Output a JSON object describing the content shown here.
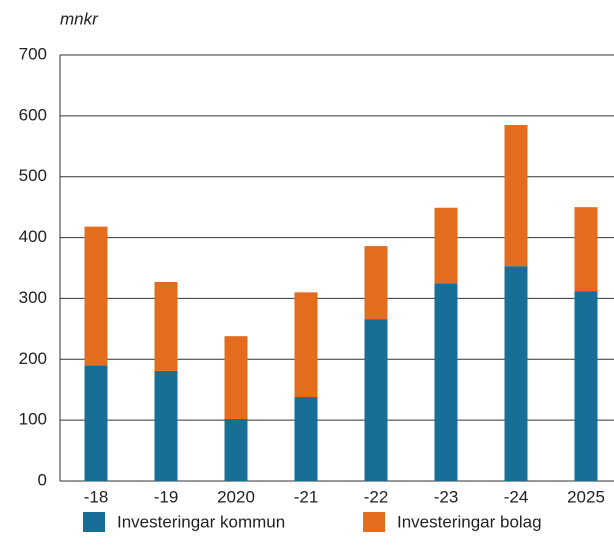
{
  "chart_data": {
    "type": "stacked_bar",
    "y_label": "mnkr",
    "categories": [
      "-18",
      "-19",
      "2020",
      "-21",
      "-22",
      "-23",
      "-24",
      "2025"
    ],
    "series": [
      {
        "name": "Investeringar kommun",
        "color": "#176f97",
        "values": [
          190,
          181,
          102,
          138,
          266,
          325,
          353,
          312
        ]
      },
      {
        "name": "Investeringar bolag",
        "color": "#e46c1e",
        "values": [
          228,
          146,
          136,
          172,
          120,
          124,
          232,
          138
        ]
      }
    ],
    "ylim": [
      0,
      700
    ],
    "yticks": [
      0,
      100,
      200,
      300,
      400,
      500,
      600,
      700
    ],
    "grid": true
  }
}
